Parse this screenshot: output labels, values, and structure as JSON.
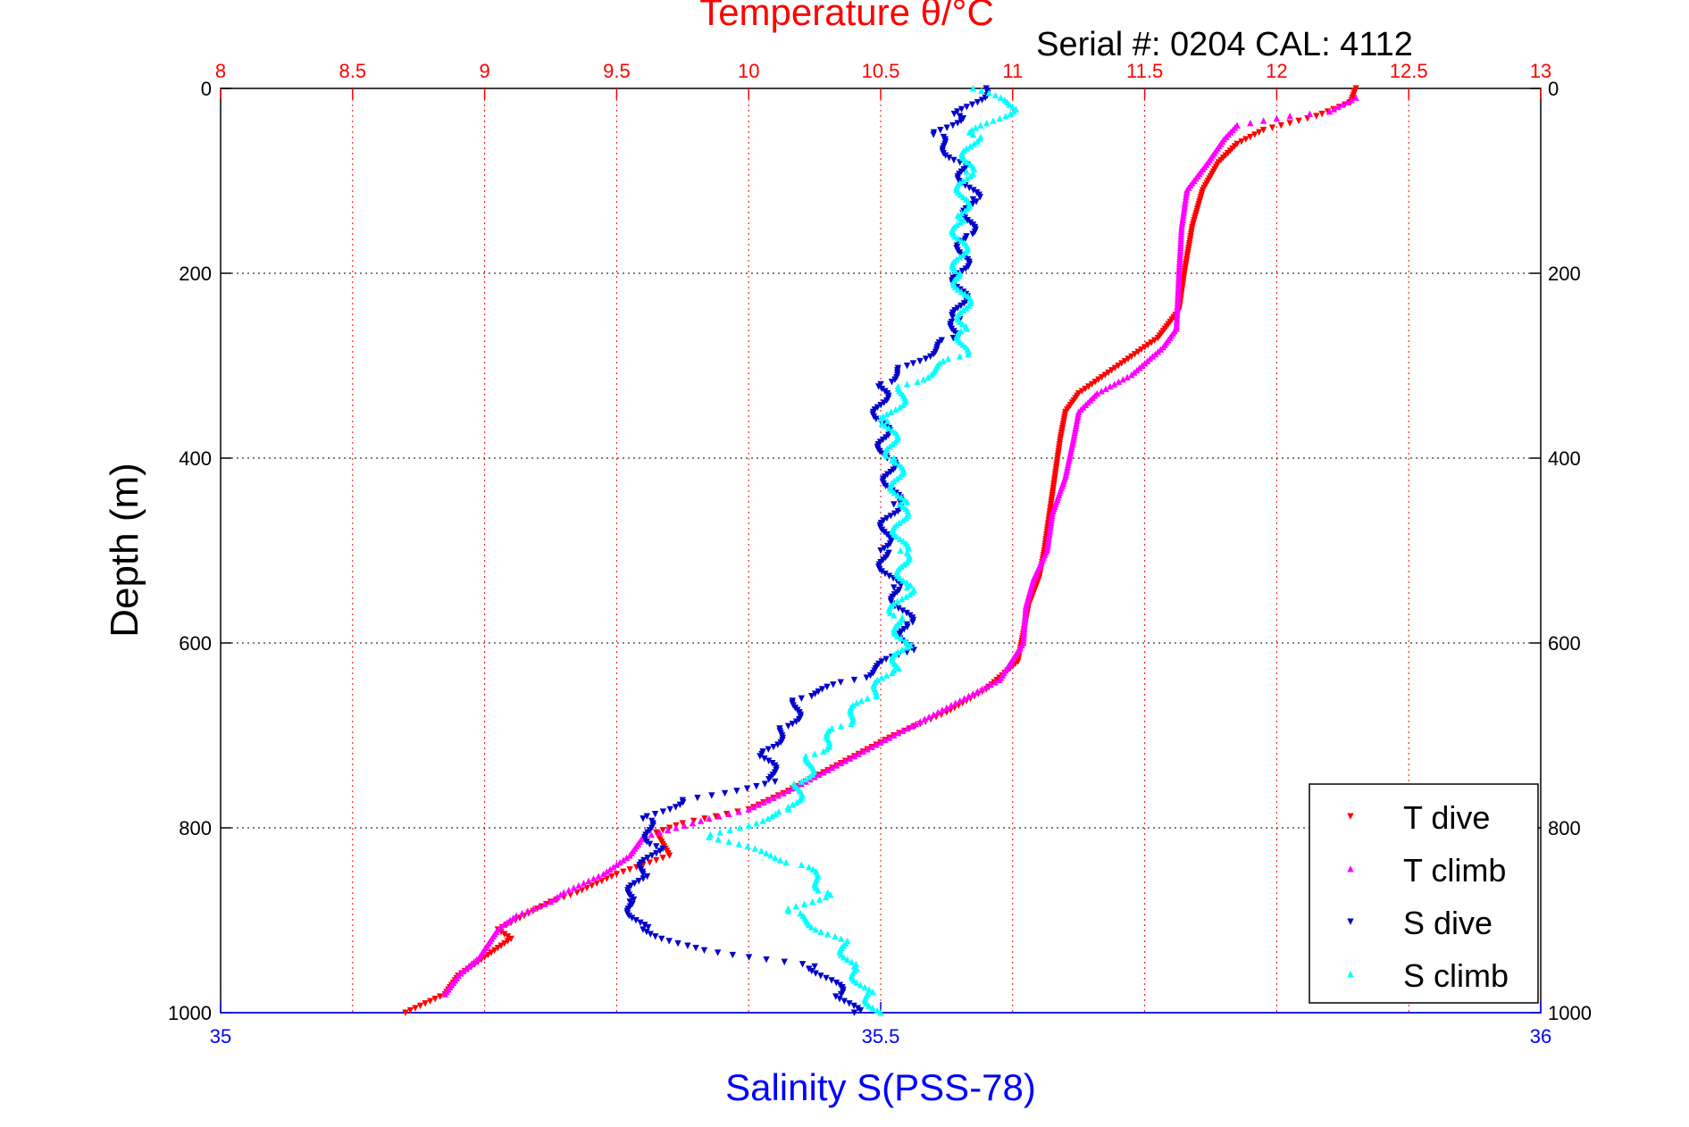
{
  "chart_data": {
    "type": "scatter",
    "title": "Temperature θ/°C",
    "subtitle": "Serial #: 0204  CAL: 4112",
    "xlabel_top": "Temperature θ/°C",
    "xlabel_bottom": "Salinity S(PSS-78)",
    "ylabel": "Depth (m)",
    "x_top": {
      "label": "Temperature θ/°C",
      "range": [
        8,
        13
      ],
      "ticks": [
        "8",
        "8.5",
        "9",
        "9.5",
        "10",
        "10.5",
        "11",
        "11.5",
        "12",
        "12.5",
        "13"
      ],
      "color": "#ff0000"
    },
    "x_bottom": {
      "label": "Salinity S(PSS-78)",
      "range": [
        35,
        36
      ],
      "ticks": [
        "35",
        "35.5",
        "36"
      ],
      "color": "#0000ff"
    },
    "y": {
      "label": "Depth (m)",
      "range": [
        0,
        1000
      ],
      "reversed": true,
      "ticks": [
        "0",
        "200",
        "400",
        "600",
        "800",
        "1000"
      ]
    },
    "grid": true,
    "legend": {
      "placement": "bottom-right",
      "entries": [
        "T dive",
        "T climb",
        "S dive",
        "S climb"
      ]
    },
    "series": [
      {
        "name": "T dive",
        "axis": "temperature",
        "color": "#ff0000",
        "marker": "triangle-down",
        "points": [
          [
            12.3,
            0
          ],
          [
            12.28,
            15
          ],
          [
            12.15,
            30
          ],
          [
            11.95,
            45
          ],
          [
            11.85,
            60
          ],
          [
            11.78,
            80
          ],
          [
            11.72,
            110
          ],
          [
            11.68,
            150
          ],
          [
            11.65,
            200
          ],
          [
            11.63,
            240
          ],
          [
            11.55,
            270
          ],
          [
            11.45,
            290
          ],
          [
            11.35,
            310
          ],
          [
            11.25,
            330
          ],
          [
            11.2,
            350
          ],
          [
            11.18,
            380
          ],
          [
            11.16,
            420
          ],
          [
            11.14,
            460
          ],
          [
            11.12,
            500
          ],
          [
            11.1,
            530
          ],
          [
            11.06,
            560
          ],
          [
            11.04,
            590
          ],
          [
            11.02,
            620
          ],
          [
            10.9,
            650
          ],
          [
            10.75,
            675
          ],
          [
            10.55,
            700
          ],
          [
            10.35,
            730
          ],
          [
            10.15,
            760
          ],
          [
            10.0,
            780
          ],
          [
            9.75,
            795
          ],
          [
            9.65,
            805
          ],
          [
            9.7,
            830
          ],
          [
            9.5,
            850
          ],
          [
            9.35,
            870
          ],
          [
            9.25,
            880
          ],
          [
            9.15,
            895
          ],
          [
            9.05,
            910
          ],
          [
            9.1,
            920
          ],
          [
            9.0,
            940
          ],
          [
            8.9,
            960
          ],
          [
            8.85,
            980
          ],
          [
            8.7,
            1000
          ]
        ]
      },
      {
        "name": "T climb",
        "axis": "temperature",
        "color": "#ff00ff",
        "marker": "triangle-up",
        "points": [
          [
            12.3,
            10
          ],
          [
            12.2,
            25
          ],
          [
            12.05,
            30
          ],
          [
            11.85,
            40
          ],
          [
            11.8,
            55
          ],
          [
            11.74,
            80
          ],
          [
            11.66,
            110
          ],
          [
            11.64,
            150
          ],
          [
            11.63,
            200
          ],
          [
            11.62,
            260
          ],
          [
            11.57,
            280
          ],
          [
            11.45,
            310
          ],
          [
            11.32,
            330
          ],
          [
            11.25,
            350
          ],
          [
            11.23,
            380
          ],
          [
            11.2,
            420
          ],
          [
            11.15,
            460
          ],
          [
            11.13,
            500
          ],
          [
            11.08,
            530
          ],
          [
            11.05,
            560
          ],
          [
            11.04,
            600
          ],
          [
            10.95,
            640
          ],
          [
            10.75,
            670
          ],
          [
            10.55,
            700
          ],
          [
            10.35,
            730
          ],
          [
            10.15,
            760
          ],
          [
            10.0,
            780
          ],
          [
            9.85,
            790
          ],
          [
            9.6,
            810
          ],
          [
            9.55,
            830
          ],
          [
            9.45,
            850
          ],
          [
            9.3,
            870
          ],
          [
            9.25,
            880
          ],
          [
            9.12,
            895
          ],
          [
            9.05,
            910
          ],
          [
            8.98,
            940
          ],
          [
            8.9,
            960
          ],
          [
            8.85,
            980
          ]
        ]
      },
      {
        "name": "S dive",
        "axis": "salinity",
        "color": "#0000cc",
        "marker": "triangle-down",
        "points": [
          [
            35.58,
            0
          ],
          [
            35.56,
            30
          ],
          [
            35.54,
            50
          ],
          [
            35.56,
            80
          ],
          [
            35.57,
            120
          ],
          [
            35.565,
            160
          ],
          [
            35.56,
            200
          ],
          [
            35.56,
            250
          ],
          [
            35.555,
            270
          ],
          [
            35.52,
            300
          ],
          [
            35.5,
            320
          ],
          [
            35.5,
            360
          ],
          [
            35.505,
            400
          ],
          [
            35.51,
            450
          ],
          [
            35.5,
            500
          ],
          [
            35.51,
            540
          ],
          [
            35.52,
            580
          ],
          [
            35.52,
            610
          ],
          [
            35.48,
            640
          ],
          [
            35.44,
            660
          ],
          [
            35.43,
            690
          ],
          [
            35.41,
            720
          ],
          [
            35.42,
            750
          ],
          [
            35.35,
            770
          ],
          [
            35.32,
            790
          ],
          [
            35.33,
            820
          ],
          [
            35.32,
            850
          ],
          [
            35.31,
            880
          ],
          [
            35.32,
            910
          ],
          [
            35.36,
            930
          ],
          [
            35.45,
            950
          ],
          [
            35.47,
            980
          ],
          [
            35.48,
            1000
          ]
        ]
      },
      {
        "name": "S climb",
        "axis": "salinity",
        "color": "#00ffff",
        "marker": "triangle-up",
        "points": [
          [
            35.57,
            0
          ],
          [
            35.6,
            20
          ],
          [
            35.57,
            50
          ],
          [
            35.565,
            90
          ],
          [
            35.56,
            140
          ],
          [
            35.56,
            200
          ],
          [
            35.565,
            260
          ],
          [
            35.56,
            290
          ],
          [
            35.52,
            320
          ],
          [
            35.505,
            360
          ],
          [
            35.51,
            400
          ],
          [
            35.515,
            450
          ],
          [
            35.515,
            500
          ],
          [
            35.52,
            540
          ],
          [
            35.51,
            570
          ],
          [
            35.52,
            600
          ],
          [
            35.51,
            630
          ],
          [
            35.49,
            660
          ],
          [
            35.47,
            690
          ],
          [
            35.45,
            720
          ],
          [
            35.44,
            750
          ],
          [
            35.43,
            780
          ],
          [
            35.37,
            810
          ],
          [
            35.44,
            840
          ],
          [
            35.46,
            870
          ],
          [
            35.43,
            890
          ],
          [
            35.47,
            920
          ],
          [
            35.48,
            950
          ],
          [
            35.49,
            980
          ],
          [
            35.5,
            1000
          ]
        ]
      }
    ]
  }
}
